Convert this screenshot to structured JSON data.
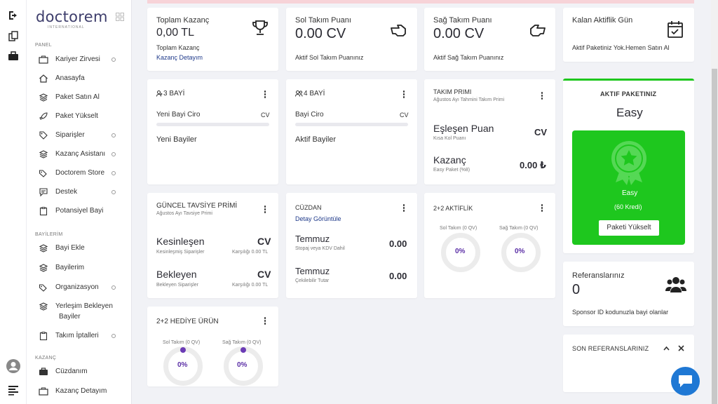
{
  "sidebar": {
    "logo": "doctorem",
    "logo_sub": "INTERNATIONAL",
    "sections": {
      "panel": "PANEL",
      "bayilerim": "BAYİLERİM",
      "kazanc": "KAZANÇ"
    },
    "items": [
      {
        "label": "Kariyer Zirvesi"
      },
      {
        "label": "Anasayfa"
      },
      {
        "label": "Paket Satın Al"
      },
      {
        "label": "Paket Yükselt"
      },
      {
        "label": "Siparişler"
      },
      {
        "label": "Kazanç Asistanı"
      },
      {
        "label": "Doctorem Store"
      },
      {
        "label": "Destek"
      },
      {
        "label": "Potansiyel Bayi"
      },
      {
        "label": "Bayi Ekle"
      },
      {
        "label": "Bayilerim"
      },
      {
        "label": "Organizasyon"
      },
      {
        "label": "Yerleşim Bekleyen"
      },
      {
        "label": "Bayiler"
      },
      {
        "label": "Takım İptalleri"
      },
      {
        "label": "Cüzdanım"
      },
      {
        "label": "Kazanç Detayım"
      }
    ]
  },
  "top": {
    "toplam": {
      "title": "Toplam Kazanç",
      "value": "0,00 TL",
      "label": "Toplam Kazanç",
      "link": "Kazanç Detayım"
    },
    "sol": {
      "title": "Sol Takım Puanı",
      "value": "0.00 CV",
      "label": "Aktif Sol Takım Puanınız"
    },
    "sag": {
      "title": "Sağ Takım Puanı",
      "value": "0.00 CV",
      "label": "Aktif Sağ Takım Puanınız"
    },
    "kalan": {
      "title": "Kalan Aktiflik Gün",
      "label": "Aktif Paketiniz Yok.Hemen Satın Al"
    }
  },
  "bayi3": {
    "title": "3 BAYİ",
    "ciro": "Yeni Bayi Ciro",
    "cv": "CV",
    "footer": "Yeni Bayiler"
  },
  "bayi4": {
    "title": "4 BAYİ",
    "ciro": "Bayi Ciro",
    "cv": "CV",
    "footer": "Aktif Bayiler"
  },
  "takim": {
    "title": "TAKIM PRIMI",
    "sub": "Ağustos Ayı Tahmini Takım Primi",
    "eslesen": "Eşleşen Puan",
    "eslesen_sub": "Kısa Kol Puanı",
    "eslesen_val": "CV",
    "kazanc": "Kazanç",
    "kazanc_sub": "Easy Paket (%8)",
    "kazanc_val": "0.00 ₺"
  },
  "tavsiye": {
    "title": "GÜNCEL TAVSİYE PRİMİ",
    "sub": "Ağustos Ayı Tavsiye Primi",
    "kesin": "Kesinleşen",
    "kesin_sub": "Kesinleşmiş Siparişler",
    "kesin_val": "CV",
    "kesin_kar": "Karşılığı 0.00 TL",
    "bek": "Bekleyen",
    "bek_sub": "Bekleyen Siparişler",
    "bek_val": "CV",
    "bek_kar": "Karşılığı 0.00 TL"
  },
  "cuzdan": {
    "title": "CÜZDAN",
    "link": "Detay Görüntüle",
    "temmuz1": "Temmuz",
    "temmuz1_sub": "Stopaj veya KDV Dahil",
    "temmuz1_val": "0.00",
    "temmuz2": "Temmuz",
    "temmuz2_sub": "Çekilebilir Tutar",
    "temmuz2_val": "0.00"
  },
  "aktiflik": {
    "title": "2+2 AKTİFLİK",
    "sol": "Sol Takım (0 QV)",
    "sag": "Sağ Takım (0 QV)",
    "sol_pct": "0%",
    "sag_pct": "0%"
  },
  "hediye": {
    "title": "2+2 HEDİYE ÜRÜN",
    "sol": "Sol Takım (0 QV)",
    "sag": "Sağ Takım (0 QV)",
    "sol_pct": "0%",
    "sag_pct": "0%"
  },
  "paket": {
    "title": "AKTIF PAKETINIZ",
    "name": "Easy",
    "badge_name": "Easy",
    "kredi": "(60 Kredi)",
    "button": "Paketi Yükselt"
  },
  "referans": {
    "title": "Referanslarınız",
    "value": "0",
    "label": "Sponsor ID kodunuzla bayi olanlar"
  },
  "son": {
    "title": "SON REFERANSLARINIZ"
  },
  "colors": {
    "accent": "#1ec71e",
    "purple": "#6b3bb5",
    "chat": "#1f78d4"
  }
}
